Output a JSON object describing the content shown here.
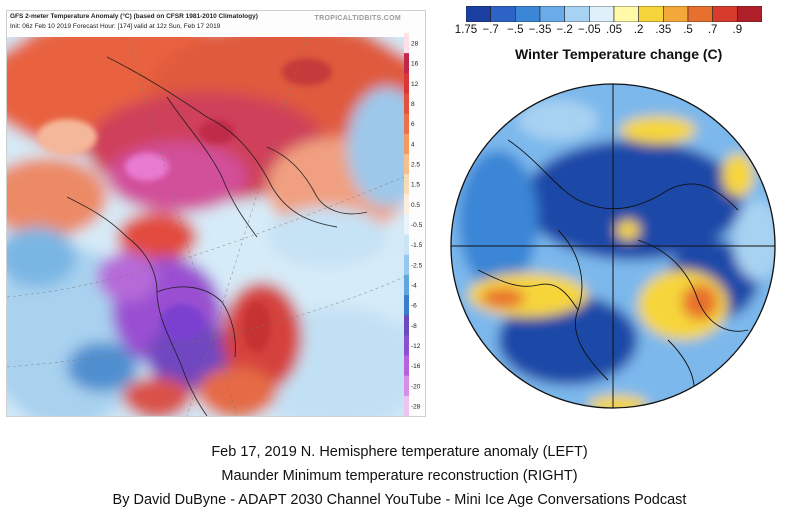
{
  "left_panel": {
    "title": "GFS 2-meter Temperature Anomaly (°C) (based on CFSR 1981-2010 Climatology)",
    "subtitle": "Init: 06z Feb 10 2019   Forecast Hour: [174]   valid at 12z Sun, Feb 17 2019",
    "watermark": "TROPICALTIDBITS.COM",
    "scale_labels": [
      "28",
      "16",
      "12",
      "8",
      "6",
      "4",
      "2.5",
      "1.5",
      "0.5",
      "-0.5",
      "-1.5",
      "-2.5",
      "-4",
      "-6",
      "-8",
      "-12",
      "-16",
      "-20",
      "-28"
    ],
    "scale_colors": [
      "#fde0e8",
      "#c0284a",
      "#d9363a",
      "#e4503b",
      "#ec7048",
      "#f29a62",
      "#f6c08c",
      "#f8dcb8",
      "#fbeedd",
      "#e8f3fb",
      "#c8e4f5",
      "#95c8ec",
      "#5fa6dc",
      "#3a7ec8",
      "#6c4bbf",
      "#8c4fd0",
      "#b563dc",
      "#d88ee8",
      "#f0c2f2"
    ]
  },
  "right_panel": {
    "legend_labels": [
      "1.75",
      "−.7",
      "−.5",
      "−.35",
      "−.2",
      "−.05",
      ".05",
      ".2",
      ".35",
      ".5",
      ".7",
      ".9"
    ],
    "legend_colors": [
      "#1b3fa0",
      "#2c63c4",
      "#3b86d6",
      "#6aacea",
      "#a8d2f2",
      "#dff0fa",
      "#fff9a8",
      "#f6d53a",
      "#f2a93a",
      "#e8702e",
      "#d63b2b",
      "#b0202a"
    ],
    "title": "Winter Temperature change (C)"
  },
  "caption": {
    "line1": "Feb 17, 2019 N. Hemisphere temperature anomaly (LEFT)",
    "line2": "Maunder Minimum temperature reconstruction (RIGHT)",
    "line3": "By David DuByne - ADAPT 2030 Channel YouTube - Mini Ice Age Conversations Podcast"
  }
}
